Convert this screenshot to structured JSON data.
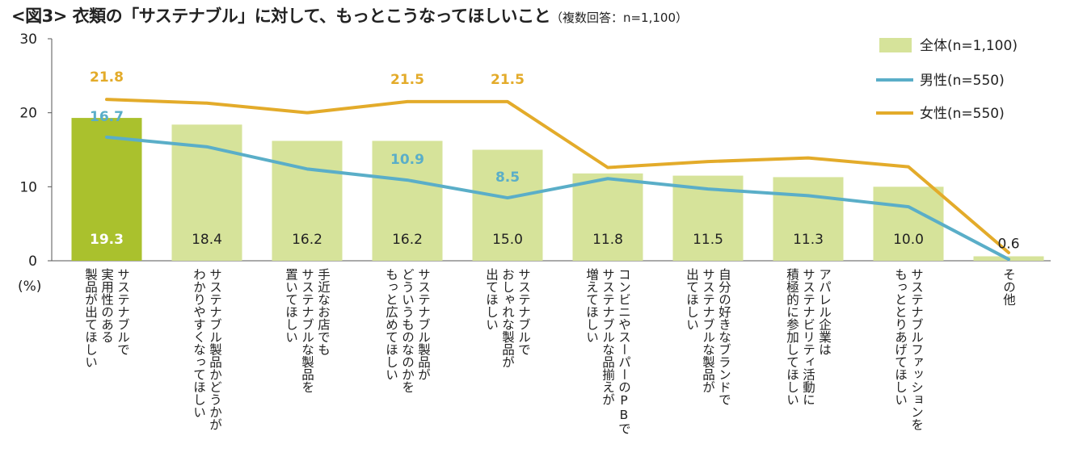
{
  "chart_data": {
    "type": "bar",
    "title": "<図3> 衣類の「サステナブル」に対して、もっとこうなってほしいこと",
    "subtitle": "（複数回答：n=1,100）",
    "ylabel": "(%)",
    "ylim": [
      0,
      30
    ],
    "yticks": [
      "0",
      "10",
      "20",
      "30"
    ],
    "grid": false,
    "legend_position": "top-right",
    "categories": [
      [
        "サステナブルで",
        "実用性のある",
        "製品が出てほしい"
      ],
      [
        "サステナブル製品かどうかが",
        "わかりやすくなってほしい"
      ],
      [
        "手近なお店でも",
        "サステナブルな製品を",
        "置いてほしい"
      ],
      [
        "サステナブル製品が",
        "どういうものなのかを",
        "もっと広めてほしい"
      ],
      [
        "サステナブルで",
        "おしゃれな製品が",
        "出てほしい"
      ],
      [
        "コンビニやスーパーのPBで",
        "サステナブルな品揃えが",
        "増えてほしい"
      ],
      [
        "自分の好きなブランドで",
        "サステナブルな製品が",
        "出てほしい"
      ],
      [
        "アパレル企業は",
        "サステナビリティ活動に",
        "積極的に参加してほしい"
      ],
      [
        "サステナブルファッションを",
        "もっととりあげてほしい"
      ],
      [
        "その他"
      ]
    ],
    "series": [
      {
        "name": "全体(n=1,100)",
        "type": "bar",
        "color": "#d6e39a",
        "highlight_color": "#aac12d",
        "values": [
          19.3,
          18.4,
          16.2,
          16.2,
          15.0,
          11.8,
          11.5,
          11.3,
          10.0,
          0.6
        ],
        "labels": [
          "19.3",
          "18.4",
          "16.2",
          "16.2",
          "15.0",
          "11.8",
          "11.5",
          "11.3",
          "10.0",
          "0.6"
        ]
      },
      {
        "name": "男性(n=550)",
        "type": "line",
        "color": "#5aaec8",
        "values": [
          16.7,
          15.4,
          12.4,
          10.9,
          8.5,
          11.1,
          9.7,
          8.8,
          7.3,
          0.2
        ],
        "labels": [
          "16.7",
          "",
          "",
          "10.9",
          "8.5",
          "",
          "",
          "",
          "",
          ""
        ]
      },
      {
        "name": "女性(n=550)",
        "type": "line",
        "color": "#e3ab2a",
        "values": [
          21.8,
          21.3,
          20.0,
          21.5,
          21.5,
          12.6,
          13.4,
          13.9,
          12.7,
          1.1
        ],
        "labels": [
          "21.8",
          "",
          "",
          "21.5",
          "21.5",
          "",
          "",
          "",
          "",
          ""
        ]
      }
    ]
  }
}
